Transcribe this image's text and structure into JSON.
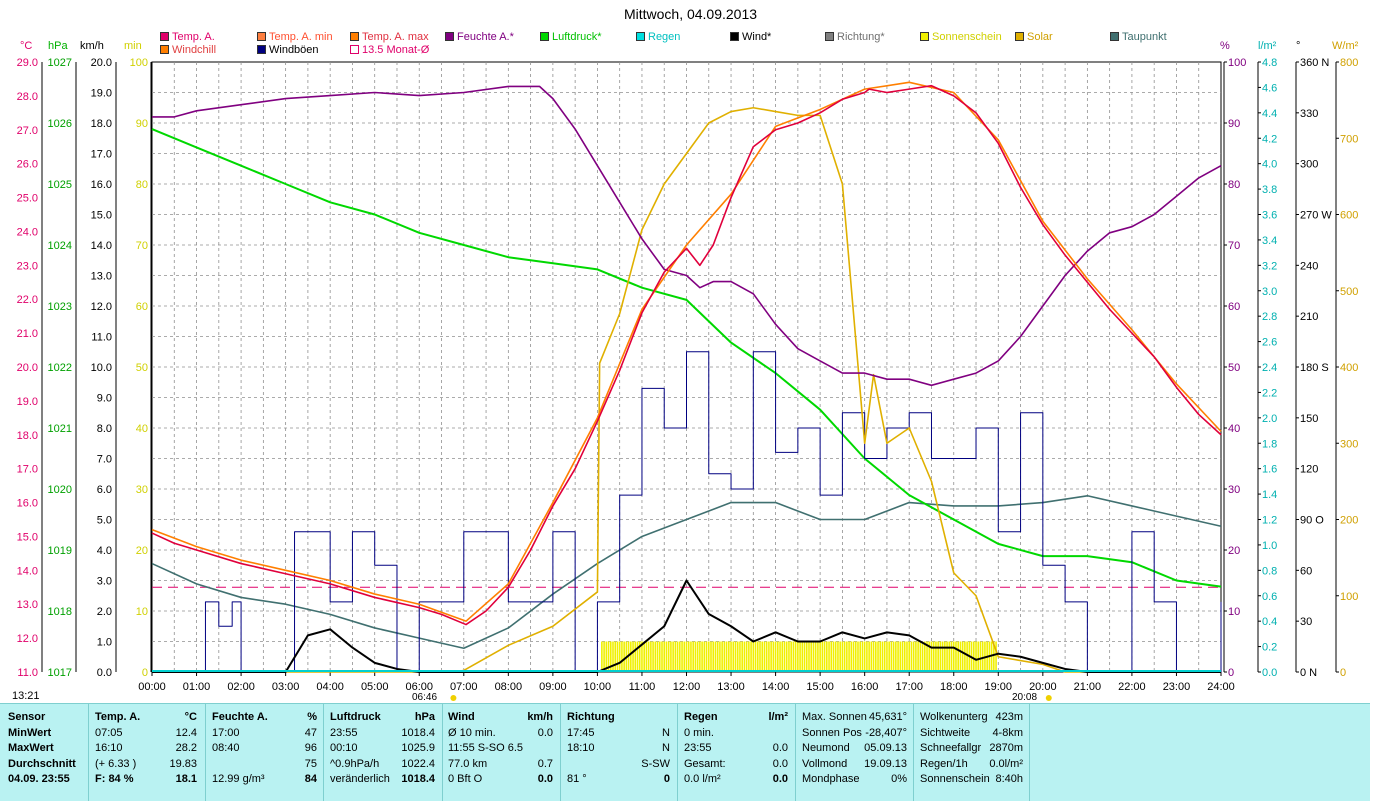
{
  "title": "Mittwoch, 04.09.2013",
  "time_now": "13:21",
  "legend": [
    {
      "label": "Temp. A.",
      "color": "#e0006a"
    },
    {
      "label": "Temp. A. min",
      "color": "#ff7f40"
    },
    {
      "label": "Temp. A. max",
      "color": "#ff7f00"
    },
    {
      "label": "Feuchte A.*",
      "color": "#800080"
    },
    {
      "label": "Luftdruck*",
      "color": "#00d800"
    },
    {
      "label": "Regen",
      "color": "#00d0d0"
    },
    {
      "label": "Wind*",
      "color": "#000000"
    },
    {
      "label": "Richtung*",
      "color": "#808080"
    },
    {
      "label": "Sonnenschein",
      "color": "#f0f000"
    },
    {
      "label": "Solar",
      "color": "#e0b000"
    },
    {
      "label": "Taupunkt",
      "color": "#407070"
    },
    {
      "label": "Windchill",
      "color": "#ff7f00"
    },
    {
      "label": "Windböen",
      "color": "#000080"
    },
    {
      "label": "13.5 Monat-Ø",
      "color": "#e0006a"
    }
  ],
  "axis_headers": {
    "temp": "°C",
    "press": "hPa",
    "wind": "km/h",
    "min": "min",
    "hum": "%",
    "rain": "l/m²",
    "dir": "°",
    "solar": "W/m²"
  },
  "sunrise": "06:46",
  "sunset": "20:08",
  "chart_data": {
    "type": "line",
    "title": "Mittwoch, 04.09.2013",
    "x_unit": "hour",
    "x_ticks": [
      "00:00",
      "01:00",
      "02:00",
      "03:00",
      "04:00",
      "05:00",
      "06:00",
      "07:00",
      "08:00",
      "09:00",
      "10:00",
      "11:00",
      "12:00",
      "13:00",
      "14:00",
      "15:00",
      "16:00",
      "17:00",
      "18:00",
      "19:00",
      "20:00",
      "21:00",
      "22:00",
      "23:00",
      "24:00"
    ],
    "axes": {
      "temp": {
        "unit": "°C",
        "range": [
          11,
          29
        ],
        "ticks": [
          "29.0",
          "28.0",
          "27.0",
          "26.0",
          "25.0",
          "24.0",
          "23.0",
          "22.0",
          "21.0",
          "20.0",
          "19.0",
          "18.0",
          "17.0",
          "16.0",
          "15.0",
          "14.0",
          "13.0",
          "12.0",
          "11.0"
        ]
      },
      "press": {
        "unit": "hPa",
        "range": [
          1017,
          1027
        ],
        "ticks": [
          "1027",
          "1026",
          "1025",
          "1024",
          "1023",
          "1022",
          "1021",
          "1020",
          "1019",
          "1018",
          "1017"
        ]
      },
      "wind": {
        "unit": "km/h",
        "range": [
          0,
          20
        ],
        "ticks": [
          "20.0",
          "19.0",
          "18.0",
          "17.0",
          "16.0",
          "15.0",
          "14.0",
          "13.0",
          "12.0",
          "11.0",
          "10.0",
          "9.0",
          "8.0",
          "7.0",
          "6.0",
          "5.0",
          "4.0",
          "3.0",
          "2.0",
          "1.0",
          "0.0"
        ]
      },
      "min": {
        "unit": "min",
        "range": [
          0,
          100
        ],
        "ticks": [
          "100",
          "90",
          "80",
          "70",
          "60",
          "50",
          "40",
          "30",
          "20",
          "10",
          "0"
        ]
      },
      "hum": {
        "unit": "%",
        "range": [
          0,
          100
        ],
        "ticks": [
          "100",
          "90",
          "80",
          "70",
          "60",
          "50",
          "40",
          "30",
          "20",
          "10",
          "0"
        ]
      },
      "rain": {
        "unit": "l/m²",
        "range": [
          0,
          4.8
        ],
        "ticks": [
          "4.8",
          "4.6",
          "4.4",
          "4.2",
          "4.0",
          "3.8",
          "3.6",
          "3.4",
          "3.2",
          "3.0",
          "2.8",
          "2.6",
          "2.4",
          "2.2",
          "2.0",
          "1.8",
          "1.6",
          "1.4",
          "1.2",
          "1.0",
          "0.8",
          "0.6",
          "0.4",
          "0.2",
          "0.0"
        ]
      },
      "dir": {
        "unit": "°",
        "range": [
          0,
          360
        ],
        "ticks": [
          "360 N",
          "330",
          "300",
          "270 W",
          "240",
          "210",
          "180 S",
          "150",
          "120",
          "90 O",
          "60",
          "30",
          "0 N"
        ]
      },
      "solar": {
        "unit": "W/m²",
        "range": [
          0,
          800
        ],
        "ticks": [
          "800",
          "700",
          "600",
          "500",
          "400",
          "300",
          "200",
          "100",
          "0"
        ]
      }
    },
    "series": [
      {
        "name": "Temp. A.",
        "axis": "temp",
        "color": "#e0003c",
        "x": [
          0,
          0.5,
          1,
          2,
          3,
          4,
          5,
          6,
          6.5,
          7.05,
          7.5,
          8,
          8.5,
          9,
          9.5,
          10,
          10.5,
          11,
          11.5,
          12,
          12.3,
          12.6,
          13,
          13.5,
          14,
          14.5,
          15,
          15.5,
          16,
          16.1,
          16.5,
          17,
          17.5,
          18,
          18.5,
          19,
          19.5,
          20,
          20.5,
          21,
          21.5,
          22,
          22.5,
          23,
          23.5,
          24
        ],
        "y": [
          15.1,
          14.8,
          14.6,
          14.2,
          13.9,
          13.6,
          13.2,
          12.9,
          12.7,
          12.4,
          12.8,
          13.5,
          14.6,
          15.9,
          17.0,
          18.4,
          19.9,
          21.6,
          22.8,
          23.5,
          23.0,
          23.6,
          25.0,
          26.5,
          27.0,
          27.2,
          27.5,
          27.9,
          28.1,
          28.2,
          28.1,
          28.2,
          28.3,
          28.0,
          27.5,
          26.6,
          25.3,
          24.2,
          23.3,
          22.5,
          21.7,
          21.0,
          20.3,
          19.4,
          18.6,
          18.0
        ]
      },
      {
        "name": "Feuchte A.*",
        "axis": "hum",
        "color": "#800080",
        "x": [
          0,
          0.5,
          1,
          2,
          3,
          4,
          5,
          6,
          7,
          8,
          8.7,
          9,
          9.5,
          10,
          10.5,
          11,
          11.5,
          12,
          12.3,
          12.6,
          13,
          13.5,
          14,
          14.5,
          15,
          15.5,
          16,
          16.5,
          17,
          17.5,
          18,
          18.5,
          19,
          19.5,
          20,
          20.5,
          21,
          21.5,
          22,
          22.5,
          23,
          23.5,
          24
        ],
        "y": [
          91,
          91,
          92,
          93,
          94,
          94.5,
          95,
          94.5,
          95,
          96,
          96,
          94,
          89,
          83,
          77,
          71,
          66,
          65,
          63,
          64,
          64,
          62,
          57,
          53,
          51,
          49,
          49,
          48,
          48,
          47,
          48,
          49,
          51,
          55,
          60,
          65,
          69,
          72,
          73,
          75,
          78,
          81,
          83
        ]
      },
      {
        "name": "Luftdruck*",
        "axis": "press",
        "color": "#00d800",
        "x": [
          0,
          1,
          2,
          3,
          4,
          5,
          6,
          7,
          8,
          9,
          10,
          11,
          12,
          13,
          14,
          15,
          16,
          17,
          18,
          19,
          20,
          21,
          22,
          23,
          24
        ],
        "y": [
          1025.9,
          1025.6,
          1025.3,
          1025.0,
          1024.7,
          1024.5,
          1024.2,
          1024.0,
          1023.8,
          1023.7,
          1023.6,
          1023.3,
          1023.1,
          1022.4,
          1021.9,
          1021.3,
          1020.5,
          1019.9,
          1019.5,
          1019.1,
          1018.9,
          1018.9,
          1018.8,
          1018.5,
          1018.4
        ]
      },
      {
        "name": "Taupunkt",
        "axis": "temp",
        "color": "#407070",
        "x": [
          0,
          1,
          2,
          3,
          4,
          5,
          6,
          7,
          8,
          9,
          10,
          11,
          12,
          13,
          14,
          15,
          16,
          17,
          18,
          19,
          20,
          21,
          22,
          23,
          24
        ],
        "y": [
          14.2,
          13.6,
          13.2,
          13.0,
          12.7,
          12.3,
          12.0,
          11.7,
          12.3,
          13.3,
          14.2,
          15.0,
          15.5,
          16.0,
          16.0,
          15.5,
          15.5,
          16.0,
          15.9,
          15.9,
          16.0,
          16.2,
          15.9,
          15.6,
          15.3
        ]
      },
      {
        "name": "Wind*",
        "axis": "wind",
        "color": "#000000",
        "x": [
          0,
          1,
          2,
          3,
          3.5,
          4,
          4.5,
          5,
          5.5,
          6,
          7,
          8,
          9,
          10,
          10.5,
          11,
          11.5,
          12,
          12.5,
          13,
          13.5,
          14,
          14.5,
          15,
          15.5,
          16,
          16.5,
          17,
          17.5,
          18,
          18.5,
          19,
          19.5,
          20,
          20.5,
          21,
          22,
          23,
          24
        ],
        "y": [
          0,
          0,
          0,
          0,
          1.2,
          1.4,
          0.8,
          0.3,
          0.1,
          0,
          0,
          0,
          0,
          0,
          0.3,
          0.9,
          1.5,
          3.0,
          1.9,
          1.5,
          1.0,
          1.3,
          1.0,
          1.0,
          1.3,
          1.1,
          1.3,
          1.2,
          0.8,
          0.8,
          0.4,
          0.6,
          0.5,
          0.3,
          0.1,
          0,
          0,
          0,
          0
        ]
      },
      {
        "name": "Solar",
        "axis": "solar",
        "color": "#e0b000",
        "x": [
          0,
          6.8,
          7,
          8,
          9,
          10,
          10.05,
          10.5,
          11,
          11.5,
          12,
          12.5,
          13,
          13.5,
          14,
          14.5,
          15,
          15.5,
          16,
          16.2,
          16.5,
          17,
          17.5,
          18,
          18.5,
          19,
          20,
          20.5,
          21,
          24
        ],
        "y": [
          0,
          0,
          2,
          35,
          60,
          105,
          405,
          470,
          580,
          640,
          680,
          720,
          735,
          740,
          735,
          730,
          730,
          640,
          300,
          390,
          300,
          320,
          250,
          130,
          100,
          20,
          10,
          0,
          0,
          0
        ]
      },
      {
        "name": "Windböen",
        "axis": "wind",
        "color": "#000080",
        "x": [
          0,
          1,
          1.2,
          1.5,
          1.8,
          2,
          3,
          3.2,
          3.5,
          4,
          4.5,
          5,
          5.5,
          6,
          7,
          8,
          8.5,
          9,
          9.5,
          10,
          10.5,
          11,
          11.5,
          12,
          12.5,
          13,
          13.5,
          14,
          14.5,
          15,
          15.5,
          16,
          16.5,
          17,
          17.5,
          18,
          18.5,
          19,
          19.5,
          20,
          20.5,
          21,
          21.5,
          22,
          22.5,
          23,
          23.5,
          24
        ],
        "y": [
          0,
          0,
          2.3,
          1.5,
          2.3,
          0,
          0,
          4.6,
          4.6,
          2.3,
          4.6,
          3.5,
          0,
          2.3,
          4.6,
          2.3,
          2.3,
          4.6,
          0,
          2.3,
          5.8,
          9.3,
          8.0,
          10.5,
          6.5,
          6.0,
          10.5,
          7.2,
          8.0,
          5.8,
          8.5,
          7.0,
          8.0,
          8.5,
          7.0,
          7.0,
          8.0,
          4.6,
          8.5,
          3.5,
          2.3,
          0,
          0,
          4.6,
          2.3,
          0,
          0,
          2.3
        ]
      },
      {
        "name": "Windchill",
        "axis": "temp",
        "color": "#ff7f00",
        "x": [
          0,
          1,
          2,
          3,
          4,
          5,
          6,
          7.05,
          8,
          9,
          10,
          11,
          12,
          13,
          14,
          15,
          16,
          17,
          18,
          19,
          20,
          21,
          22,
          23,
          24
        ],
        "y": [
          15.2,
          14.7,
          14.3,
          14.0,
          13.7,
          13.3,
          13.0,
          12.5,
          13.6,
          16.0,
          18.5,
          21.7,
          23.6,
          25.1,
          27.1,
          27.6,
          28.2,
          28.4,
          28.1,
          26.7,
          24.3,
          22.6,
          21.1,
          19.5,
          18.1
        ]
      }
    ],
    "sunshine_bars": {
      "axis": "min",
      "color": "#f0f000",
      "start": 10.1,
      "end": 19.0,
      "value": 5
    },
    "monthly_avg": {
      "axis": "temp",
      "value": 13.5,
      "color": "#e0006a"
    }
  },
  "footer": {
    "sensor": {
      "header": "Sensor",
      "rows": [
        "MinWert",
        "MaxWert",
        "Durchschnitt",
        "04.09. 23:55"
      ]
    },
    "temp": {
      "header": "Temp. A.",
      "unit": "°C",
      "rows": [
        [
          "07:05",
          "12.4"
        ],
        [
          "16:10",
          "28.2"
        ],
        [
          "(+ 6.33 )",
          "19.83"
        ],
        [
          "F: 84 %",
          "18.1"
        ]
      ]
    },
    "feuchte": {
      "header": "Feuchte A.",
      "unit": "%",
      "rows": [
        [
          "17:00",
          "47"
        ],
        [
          "08:40",
          "96"
        ],
        [
          "",
          "75"
        ],
        [
          "12.99 g/m³",
          "84"
        ]
      ]
    },
    "luftdruck": {
      "header": "Luftdruck",
      "unit": "hPa",
      "rows": [
        [
          "23:55",
          "1018.4"
        ],
        [
          "00:10",
          "1025.9"
        ],
        [
          "^0.9hPa/h",
          "1022.4"
        ],
        [
          "veränderlich",
          "1018.4"
        ]
      ]
    },
    "wind": {
      "header": "Wind",
      "unit": "km/h",
      "rows": [
        [
          "Ø 10 min.",
          "0.0"
        ],
        [
          "11:55   S-SO 6.5",
          ""
        ],
        [
          "77.0 km",
          "0.7"
        ],
        [
          "0 Bft O",
          "0.0"
        ]
      ]
    },
    "richtung": {
      "header": "Richtung",
      "rows": [
        [
          "17:45",
          "N"
        ],
        [
          "18:10",
          "N"
        ],
        [
          "",
          "S-SW"
        ],
        [
          "81 °",
          "0"
        ]
      ]
    },
    "regen": {
      "header": "Regen",
      "unit": "l/m²",
      "rows": [
        [
          "0 min.",
          ""
        ],
        [
          "23:55",
          "0.0"
        ],
        [
          "Gesamt:",
          "0.0"
        ],
        [
          "0.0 l/m²",
          "0.0"
        ]
      ]
    },
    "sonne": {
      "rows": [
        [
          "Max. Sonnen",
          "45,631°"
        ],
        [
          "Sonnen Pos",
          "-28,407°"
        ],
        [
          "Neumond",
          "05.09.13"
        ],
        [
          "Vollmond",
          "19.09.13"
        ],
        [
          "Mondphase",
          "0%"
        ]
      ]
    },
    "misc": {
      "rows": [
        [
          "Wolkenunterg",
          "423m"
        ],
        [
          "Sichtweite",
          "4-8km"
        ],
        [
          "Schneefallgr",
          "2870m"
        ],
        [
          "Regen/1h",
          "0.0l/m²"
        ],
        [
          "Sonnenschein",
          "8:40h"
        ]
      ]
    }
  }
}
